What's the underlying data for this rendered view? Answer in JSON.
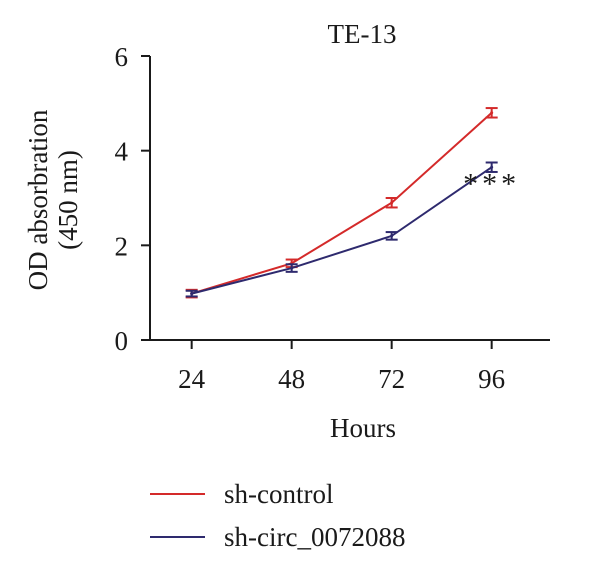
{
  "chart_data": {
    "type": "line",
    "title": "TE-13",
    "xlabel": "Hours",
    "ylabel_line1": "OD absorbration",
    "ylabel_line2": "(450 nm)",
    "x": [
      24,
      48,
      72,
      96
    ],
    "x_tick_labels": [
      "24",
      "48",
      "72",
      "96"
    ],
    "ylim": [
      0,
      6
    ],
    "y_ticks": [
      0,
      2,
      4,
      6
    ],
    "y_tick_labels": [
      "0",
      "2",
      "4",
      "6"
    ],
    "grid": false,
    "legend_position": "bottom",
    "series": [
      {
        "name": "sh-control",
        "color": "#d42a2a",
        "values": [
          0.98,
          1.62,
          2.9,
          4.8
        ],
        "errors": [
          0.08,
          0.08,
          0.1,
          0.1
        ]
      },
      {
        "name": "sh-circ_0072088",
        "color": "#2e2a6e",
        "values": [
          0.98,
          1.52,
          2.2,
          3.65
        ],
        "errors": [
          0.06,
          0.08,
          0.08,
          0.1
        ]
      }
    ],
    "annotations": [
      {
        "text": "***",
        "x": 96,
        "y": 3.1
      }
    ]
  }
}
